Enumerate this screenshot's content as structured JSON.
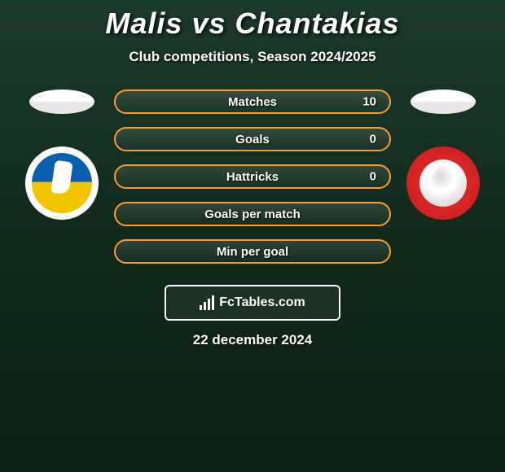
{
  "title": "Malis vs Chantakias",
  "subtitle": "Club competitions, Season 2024/2025",
  "stat_border_color": "#ff9933",
  "stats": [
    {
      "label": "Matches",
      "value_right": "10"
    },
    {
      "label": "Goals",
      "value_right": "0"
    },
    {
      "label": "Hattricks",
      "value_right": "0"
    },
    {
      "label": "Goals per match",
      "value_right": ""
    },
    {
      "label": "Min per goal",
      "value_right": ""
    }
  ],
  "branding": {
    "name": "FcTables.com"
  },
  "date": "22 december 2024",
  "colors": {
    "title": "#ffffff",
    "text": "#ffffff"
  }
}
